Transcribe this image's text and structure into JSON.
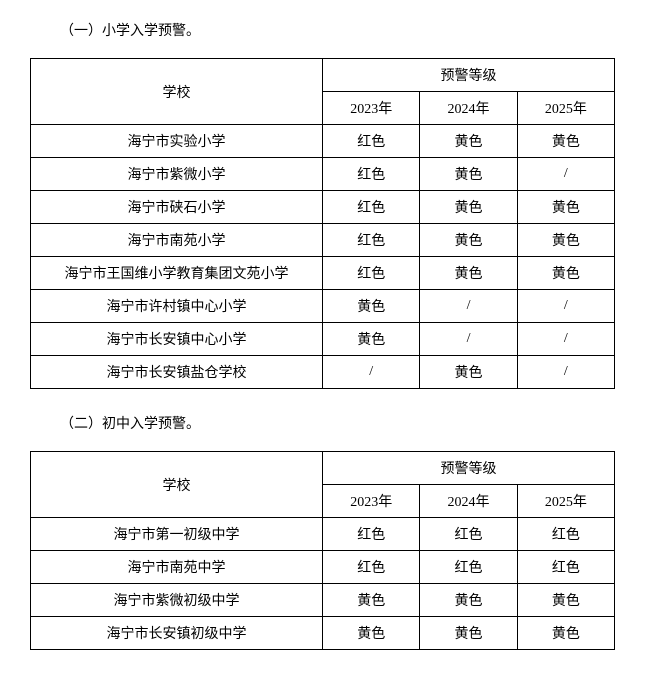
{
  "section1": {
    "title": "（一）小学入学预警。",
    "table": {
      "school_header": "学校",
      "level_header": "预警等级",
      "years": [
        "2023年",
        "2024年",
        "2025年"
      ],
      "rows": [
        {
          "school": "海宁市实验小学",
          "levels": [
            "红色",
            "黄色",
            "黄色"
          ]
        },
        {
          "school": "海宁市紫微小学",
          "levels": [
            "红色",
            "黄色",
            "/"
          ]
        },
        {
          "school": "海宁市硖石小学",
          "levels": [
            "红色",
            "黄色",
            "黄色"
          ]
        },
        {
          "school": "海宁市南苑小学",
          "levels": [
            "红色",
            "黄色",
            "黄色"
          ]
        },
        {
          "school": "海宁市王国维小学教育集团文苑小学",
          "levels": [
            "红色",
            "黄色",
            "黄色"
          ]
        },
        {
          "school": "海宁市许村镇中心小学",
          "levels": [
            "黄色",
            "/",
            "/"
          ]
        },
        {
          "school": "海宁市长安镇中心小学",
          "levels": [
            "黄色",
            "/",
            "/"
          ]
        },
        {
          "school": "海宁市长安镇盐仓学校",
          "levels": [
            "/",
            "黄色",
            "/"
          ]
        }
      ]
    }
  },
  "section2": {
    "title": "（二）初中入学预警。",
    "table": {
      "school_header": "学校",
      "level_header": "预警等级",
      "years": [
        "2023年",
        "2024年",
        "2025年"
      ],
      "rows": [
        {
          "school": "海宁市第一初级中学",
          "levels": [
            "红色",
            "红色",
            "红色"
          ]
        },
        {
          "school": "海宁市南苑中学",
          "levels": [
            "红色",
            "红色",
            "红色"
          ]
        },
        {
          "school": "海宁市紫微初级中学",
          "levels": [
            "黄色",
            "黄色",
            "黄色"
          ]
        },
        {
          "school": "海宁市长安镇初级中学",
          "levels": [
            "黄色",
            "黄色",
            "黄色"
          ]
        }
      ]
    }
  }
}
